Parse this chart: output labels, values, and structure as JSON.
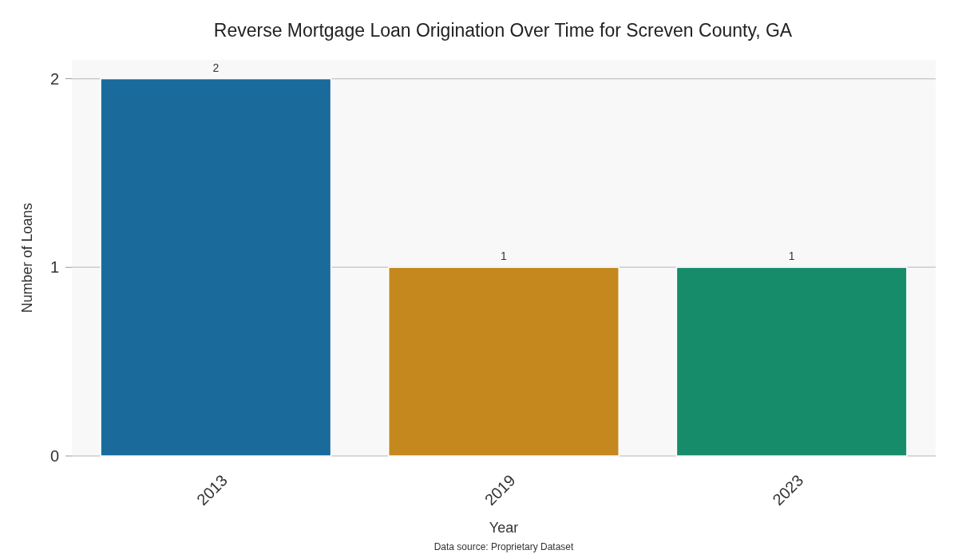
{
  "chart_data": {
    "type": "bar",
    "title": "Reverse Mortgage Loan Origination Over Time for Screven County, GA",
    "xlabel": "Year",
    "ylabel": "Number of Loans",
    "categories": [
      "2013",
      "2019",
      "2023"
    ],
    "values": [
      2,
      1,
      1
    ],
    "colors": [
      "#1a6b9c",
      "#c4881f",
      "#178c6b"
    ],
    "ylim": [
      0,
      2.1
    ],
    "yticks": [
      0,
      1,
      2
    ],
    "grid": "y",
    "data_labels": true,
    "annotations": [
      "Data source: Proprietary Dataset"
    ]
  }
}
